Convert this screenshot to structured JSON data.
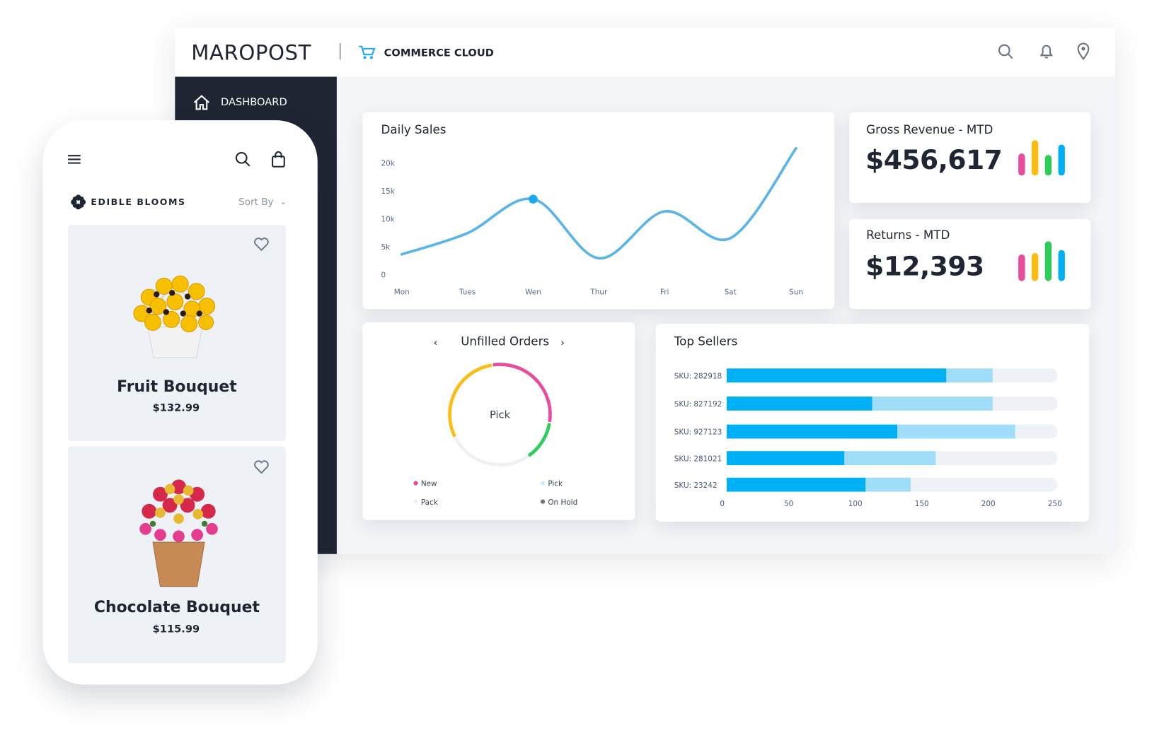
{
  "header": {
    "logo": "MAROPOST",
    "product": "COMMERCE CLOUD"
  },
  "sidebar": {
    "items": [
      "DASHBOARD"
    ]
  },
  "cards": {
    "gross_revenue": {
      "title": "Gross Revenue - MTD",
      "value": "$456,617"
    },
    "returns": {
      "title": "Returns - MTD",
      "value": "$12,393"
    }
  },
  "chart_data": [
    {
      "type": "line",
      "title": "Daily Sales",
      "categories": [
        "Mon",
        "Tues",
        "Wen",
        "Thur",
        "Fri",
        "Sat",
        "Sun"
      ],
      "series": [
        {
          "color": "#5ab4ec",
          "values": [
            3600,
            7400,
            13500,
            2900,
            11300,
            6500,
            22600
          ]
        }
      ],
      "ylim": [
        0,
        23000
      ],
      "yticks": [
        0,
        {
          "value": 5000,
          "label": "5k"
        },
        {
          "value": 10000,
          "label": "10k"
        },
        {
          "value": 15000,
          "label": "15k"
        },
        {
          "value": 20000,
          "label": "20k"
        }
      ],
      "marker": {
        "index": 2,
        "color": "#1aa9f0"
      }
    },
    {
      "type": "donut",
      "title": "Unfilled Orders",
      "center_label": "Pick",
      "segments": [
        {
          "name": "New",
          "color": "#ea4c9d",
          "legend_color": "#ea4c9d",
          "value": 30
        },
        {
          "name": "Pick",
          "color": "#2ecc5b",
          "legend_color": "#c9ecfb",
          "value": 13
        },
        {
          "name": "Pack",
          "color": "#eef1f4",
          "legend_color": "#eef1f4",
          "value": 27
        },
        {
          "name": "On Hold",
          "color": "#fbbd14",
          "legend_color": "#777777",
          "value": 30
        }
      ]
    },
    {
      "type": "bar",
      "orientation": "horizontal",
      "stacked": true,
      "title": "Top Sellers",
      "categories": [
        "SKU: 282918",
        "SKU: 827192",
        "SKU: 927123",
        "SKU: 281021",
        "SKU: 23242"
      ],
      "series": [
        {
          "color": "#00b0f4",
          "values": [
            166,
            110,
            129,
            89,
            105
          ]
        },
        {
          "color": "#9fddf8",
          "values": [
            35,
            91,
            89,
            69,
            34
          ]
        }
      ],
      "xlim": [
        0,
        250
      ],
      "xticks": [
        0,
        50,
        100,
        150,
        200,
        250
      ]
    }
  ],
  "mobile": {
    "brand": "EDIBLE BLOOMS",
    "sort": "Sort By",
    "products": [
      {
        "name": "Fruit Bouquet",
        "price": "$132.99"
      },
      {
        "name": "Chocolate Bouquet",
        "price": "$115.99"
      }
    ]
  }
}
